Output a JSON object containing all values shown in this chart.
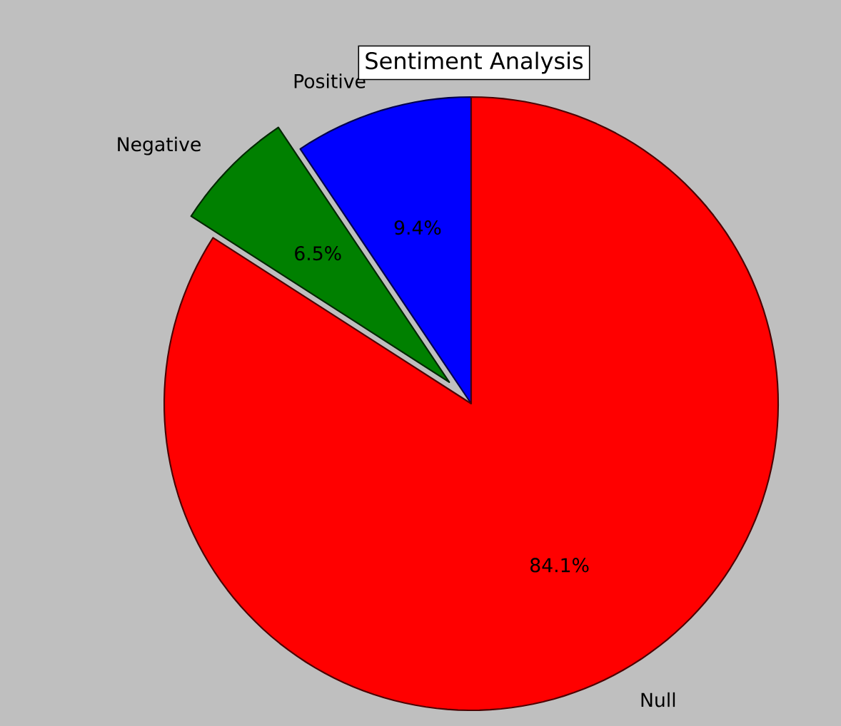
{
  "chart_data": {
    "type": "pie",
    "title": "Sentiment Analysis",
    "categories": [
      "Positive",
      "Negative",
      "Null"
    ],
    "values": [
      9.4,
      6.5,
      84.1
    ],
    "colors": [
      "#0000ff",
      "#008000",
      "#ff0000"
    ],
    "value_labels": [
      "9.4%",
      "6.5%",
      "84.1%"
    ]
  }
}
